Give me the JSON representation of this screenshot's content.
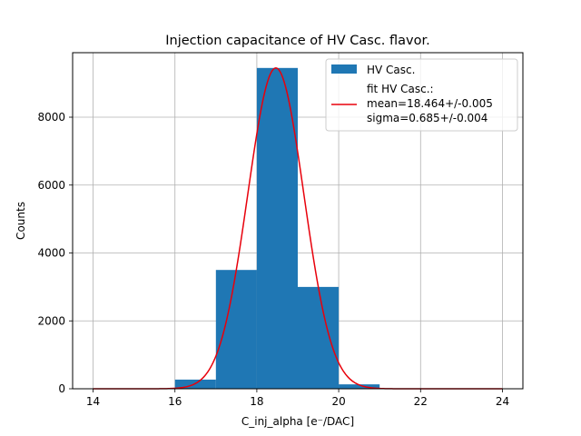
{
  "chart_data": {
    "type": "bar",
    "title": "Injection capacitance of HV Casc. flavor.",
    "xlabel": "C_inj_alpha [e⁻/DAC]",
    "ylabel": "Counts",
    "xlim": [
      13.5,
      24.5
    ],
    "ylim": [
      0,
      9900
    ],
    "xticks": [
      14,
      16,
      18,
      20,
      22,
      24
    ],
    "yticks": [
      0,
      2000,
      4000,
      6000,
      8000
    ],
    "grid": true,
    "legend_position": "top-right",
    "histogram": {
      "name": "HV Casc.",
      "color": "#1f77b4",
      "bin_edges": [
        16,
        17,
        18,
        19,
        20,
        21
      ],
      "counts": [
        270,
        3500,
        9450,
        3000,
        130
      ]
    },
    "fit": {
      "name": "fit HV Casc.:",
      "label_lines": [
        "fit HV Casc.:",
        "mean=18.464+/-0.005",
        "sigma=0.685+/-0.004"
      ],
      "color": "#e8000b",
      "mean": 18.464,
      "sigma": 0.685,
      "amplitude": 9450,
      "x_range": [
        14,
        24
      ]
    }
  }
}
